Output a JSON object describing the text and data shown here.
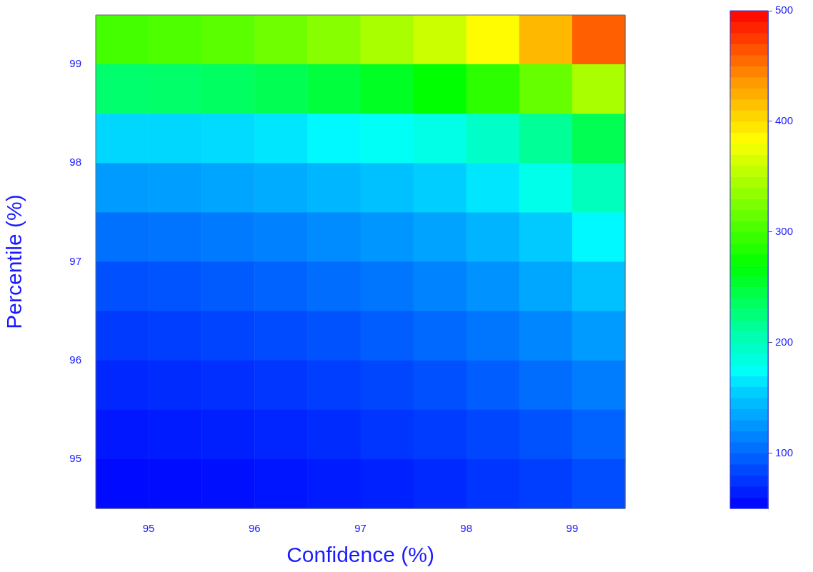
{
  "chart_data": {
    "type": "heatmap",
    "xlabel": "Confidence (%)",
    "ylabel": "Percentile (%)",
    "x": [
      94.75,
      95.25,
      95.75,
      96.25,
      96.75,
      97.25,
      97.75,
      98.25,
      98.75,
      99.25
    ],
    "y": [
      99.25,
      98.75,
      98.25,
      97.75,
      97.25,
      96.75,
      96.25,
      95.75,
      95.25,
      94.75
    ],
    "xlim": [
      94.5,
      99.5
    ],
    "xticks": [
      95,
      96,
      97,
      98,
      99
    ],
    "ylim": [
      94.5,
      99.5
    ],
    "yticks": [
      95,
      96,
      97,
      98,
      99
    ],
    "cells": [
      [
        300,
        305,
        310,
        320,
        330,
        345,
        360,
        385,
        420,
        460
      ],
      [
        230,
        232,
        235,
        240,
        248,
        258,
        270,
        290,
        315,
        345
      ],
      [
        160,
        160,
        162,
        165,
        170,
        175,
        182,
        195,
        215,
        240
      ],
      [
        128,
        130,
        133,
        137,
        142,
        148,
        155,
        165,
        180,
        200
      ],
      [
        105,
        107,
        110,
        114,
        119,
        125,
        132,
        141,
        153,
        170
      ],
      [
        89,
        91,
        94,
        98,
        103,
        108,
        115,
        123,
        134,
        148
      ],
      [
        78,
        80,
        83,
        86,
        90,
        95,
        101,
        108,
        117,
        128
      ],
      [
        69,
        71,
        73,
        76,
        80,
        84,
        89,
        95,
        103,
        112
      ],
      [
        61,
        63,
        65,
        68,
        71,
        75,
        79,
        84,
        90,
        98
      ],
      [
        55,
        56,
        58,
        60,
        63,
        66,
        70,
        75,
        80,
        87
      ]
    ],
    "clim": [
      50,
      500
    ],
    "cticks": [
      100,
      200,
      300,
      400,
      500
    ]
  }
}
